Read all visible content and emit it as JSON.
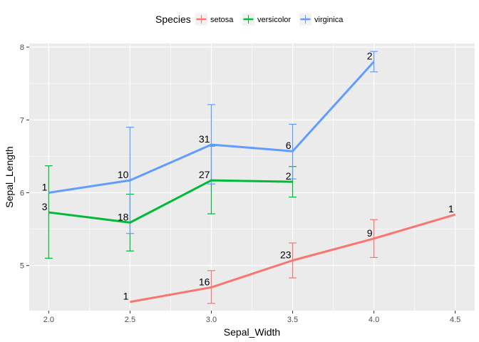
{
  "chart_data": {
    "type": "line",
    "xlabel": "Sepal_Width",
    "ylabel": "Sepal_Length",
    "xlim": [
      1.88,
      4.62
    ],
    "ylim": [
      4.38,
      8.05
    ],
    "x_ticks": [
      2.0,
      2.5,
      3.0,
      3.5,
      4.0,
      4.5
    ],
    "x_tick_labels": [
      "2.0",
      "2.5",
      "3.0",
      "3.5",
      "4.0",
      "4.5"
    ],
    "y_ticks": [
      5,
      6,
      7,
      8
    ],
    "y_tick_labels": [
      "5",
      "6",
      "7",
      "8"
    ],
    "grid": true,
    "panel_background": "#ebebeb",
    "legend": {
      "title": "Species",
      "position": "top"
    },
    "series": [
      {
        "name": "setosa",
        "color": "#f8766d",
        "points": [
          {
            "x": 2.5,
            "y": 4.5,
            "label": "1"
          },
          {
            "x": 3.0,
            "y": 4.7,
            "label": "16",
            "ymin": 4.48,
            "ymax": 4.93
          },
          {
            "x": 3.5,
            "y": 5.07,
            "label": "23",
            "ymin": 4.83,
            "ymax": 5.31
          },
          {
            "x": 4.0,
            "y": 5.37,
            "label": "9",
            "ymin": 5.11,
            "ymax": 5.63
          },
          {
            "x": 4.5,
            "y": 5.7,
            "label": "1"
          }
        ]
      },
      {
        "name": "versicolor",
        "color": "#00ba38",
        "points": [
          {
            "x": 2.0,
            "y": 5.73,
            "label": "3",
            "ymin": 5.1,
            "ymax": 6.37
          },
          {
            "x": 2.5,
            "y": 5.59,
            "label": "18",
            "ymin": 5.2,
            "ymax": 5.98
          },
          {
            "x": 3.0,
            "y": 6.17,
            "label": "27",
            "ymin": 5.71,
            "ymax": 6.64
          },
          {
            "x": 3.5,
            "y": 6.15,
            "label": "2",
            "ymin": 5.94,
            "ymax": 6.36
          }
        ]
      },
      {
        "name": "virginica",
        "color": "#619cff",
        "points": [
          {
            "x": 2.0,
            "y": 6.0,
            "label": "1"
          },
          {
            "x": 2.5,
            "y": 6.17,
            "label": "10",
            "ymin": 5.44,
            "ymax": 6.9
          },
          {
            "x": 3.0,
            "y": 6.66,
            "label": "31",
            "ymin": 6.12,
            "ymax": 7.21
          },
          {
            "x": 3.5,
            "y": 6.57,
            "label": "6",
            "ymin": 6.19,
            "ymax": 6.94
          },
          {
            "x": 4.0,
            "y": 7.8,
            "label": "2",
            "ymin": 7.66,
            "ymax": 7.94
          }
        ]
      }
    ]
  }
}
